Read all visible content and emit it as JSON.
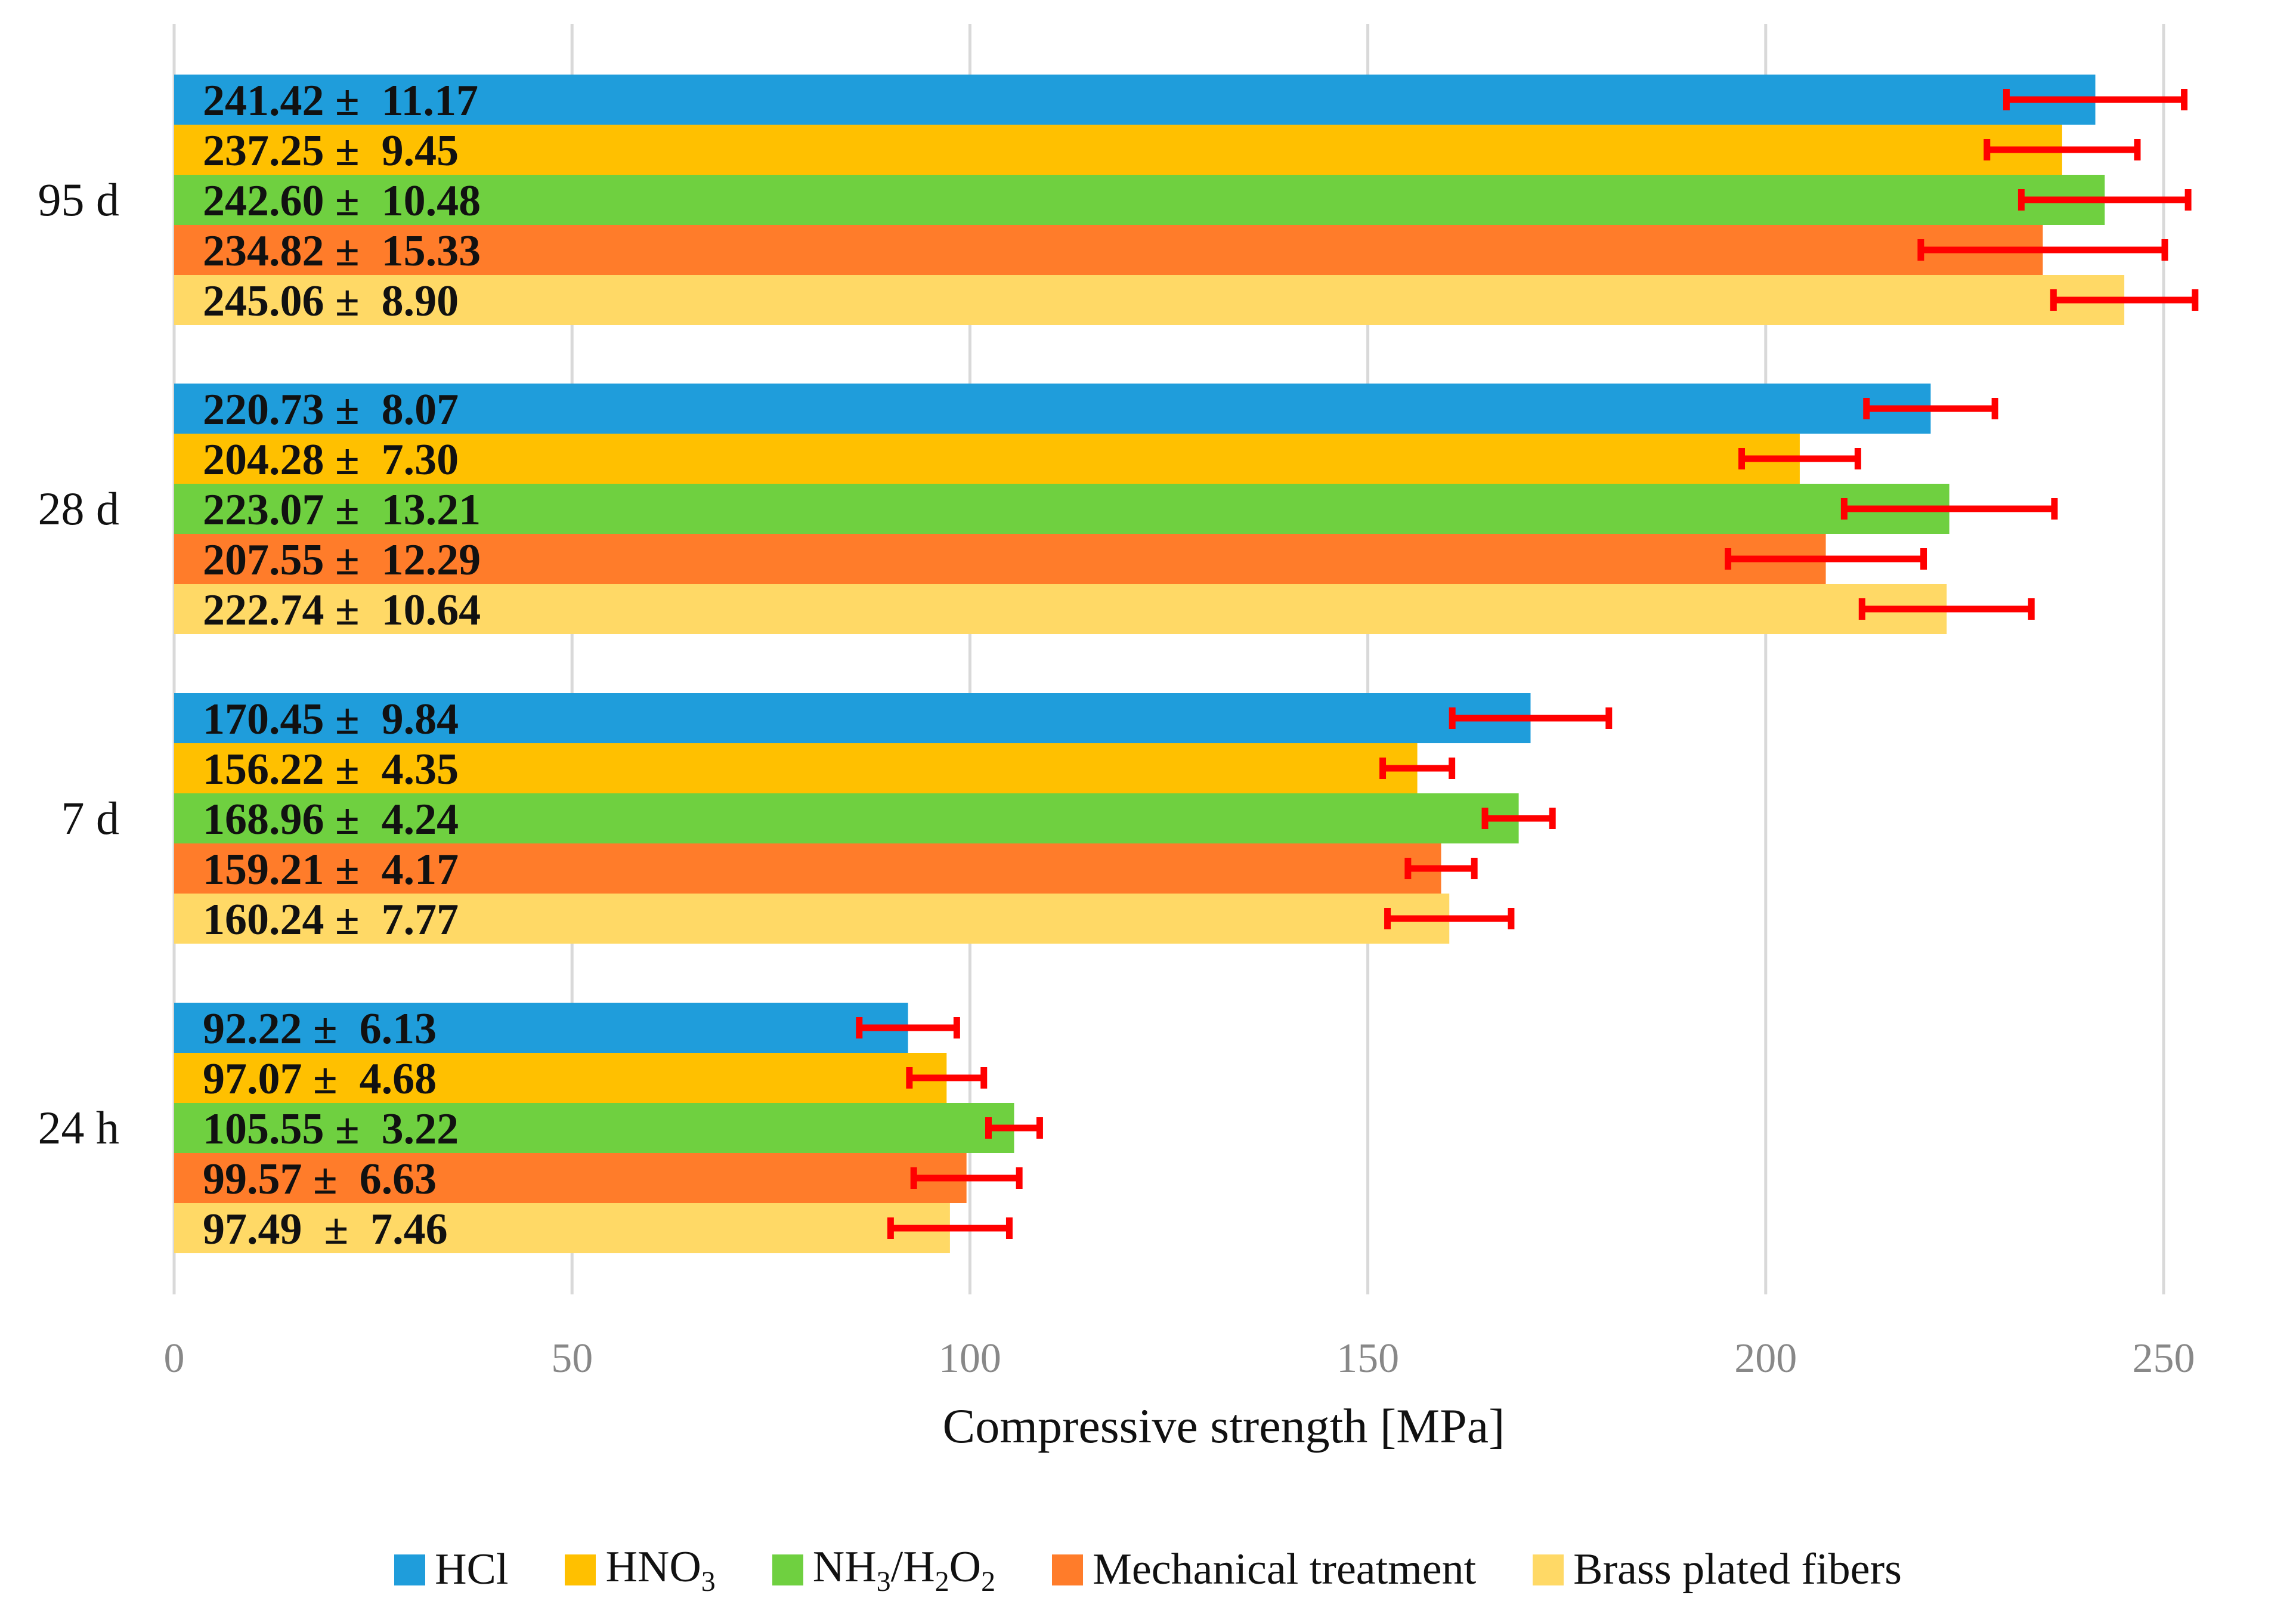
{
  "chart_data": {
    "type": "bar",
    "orientation": "horizontal",
    "xlabel": "Compressive strength [MPa]",
    "xlim": [
      0,
      250
    ],
    "xticks": [
      "0",
      "50",
      "100",
      "150",
      "200",
      "250"
    ],
    "categories": [
      "95 d",
      "28 d",
      "7 d",
      "24 h"
    ],
    "series": [
      {
        "name": "HCl",
        "color": "#1f9ddb",
        "values": [
          241.42,
          220.73,
          170.45,
          92.22
        ],
        "errors": [
          11.17,
          8.07,
          9.84,
          6.13
        ],
        "labels": [
          "241.42 ±  11.17",
          "220.73 ±  8.07",
          "170.45 ±  9.84",
          "92.22 ±  6.13"
        ]
      },
      {
        "name": "HNO3",
        "color": "#ffc000",
        "values": [
          237.25,
          204.28,
          156.22,
          97.07
        ],
        "errors": [
          9.45,
          7.3,
          4.35,
          4.68
        ],
        "labels": [
          "237.25 ±  9.45",
          "204.28 ±  7.30",
          "156.22 ±  4.35",
          "97.07 ±  4.68"
        ]
      },
      {
        "name": "NH3/H2O2",
        "color": "#6fd040",
        "values": [
          242.6,
          223.07,
          168.96,
          105.55
        ],
        "errors": [
          10.48,
          13.21,
          4.24,
          3.22
        ],
        "labels": [
          "242.60 ±  10.48",
          "223.07 ±  13.21",
          "168.96 ±  4.24",
          "105.55 ±  3.22"
        ]
      },
      {
        "name": "Mechanical treatment",
        "color": "#ff7c2a",
        "values": [
          234.82,
          207.55,
          159.21,
          99.57
        ],
        "errors": [
          15.33,
          12.29,
          4.17,
          6.63
        ],
        "labels": [
          "234.82 ±  15.33",
          "207.55 ±  12.29",
          "159.21 ±  4.17",
          "99.57 ±  6.63"
        ]
      },
      {
        "name": "Brass plated fibers",
        "color": "#ffd966",
        "values": [
          245.06,
          222.74,
          160.24,
          97.49
        ],
        "errors": [
          8.9,
          10.64,
          7.77,
          7.46
        ],
        "labels": [
          "245.06 ±  8.90",
          "222.74 ±  10.64",
          "160.24 ±  7.77",
          "97.49  ±  7.46"
        ]
      }
    ],
    "error_bar_color": "#ff0000",
    "grid": true,
    "legend": {
      "placement": "bottom",
      "items": [
        {
          "html": "HCl",
          "text": "HCl",
          "color": "#1f9ddb"
        },
        {
          "html": "HNO<sub>3</sub>",
          "text": "HNO3",
          "color": "#ffc000"
        },
        {
          "html": "NH<sub>3</sub>/H<sub>2</sub>O<sub>2</sub>",
          "text": "NH3/H2O2",
          "color": "#6fd040"
        },
        {
          "html": "Mechanical treatment",
          "text": "Mechanical treatment",
          "color": "#ff7c2a"
        },
        {
          "html": "Brass plated fibers",
          "text": "Brass plated fibers",
          "color": "#ffd966"
        }
      ]
    }
  }
}
